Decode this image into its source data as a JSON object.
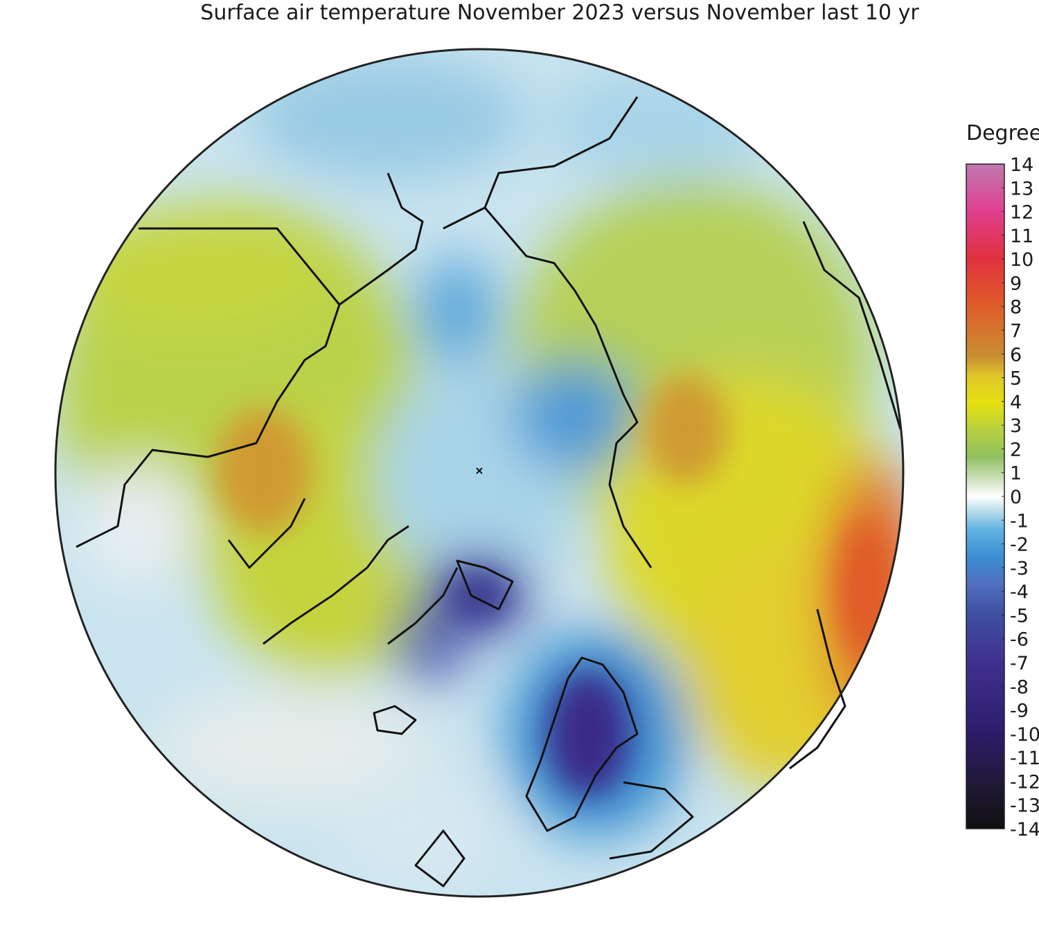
{
  "title": "Surface air temperature November 2023 versus November last 10 yr",
  "colorbar": {
    "label": "Degrees C",
    "lim": [
      -14,
      14
    ],
    "ticks": [
      14,
      13,
      12,
      11,
      10,
      9,
      8,
      7,
      6,
      5,
      4,
      3,
      2,
      1,
      0,
      -1,
      -2,
      -3,
      -4,
      -5,
      -6,
      -7,
      -8,
      -9,
      -10,
      -11,
      -12,
      -13,
      -14
    ]
  }
}
